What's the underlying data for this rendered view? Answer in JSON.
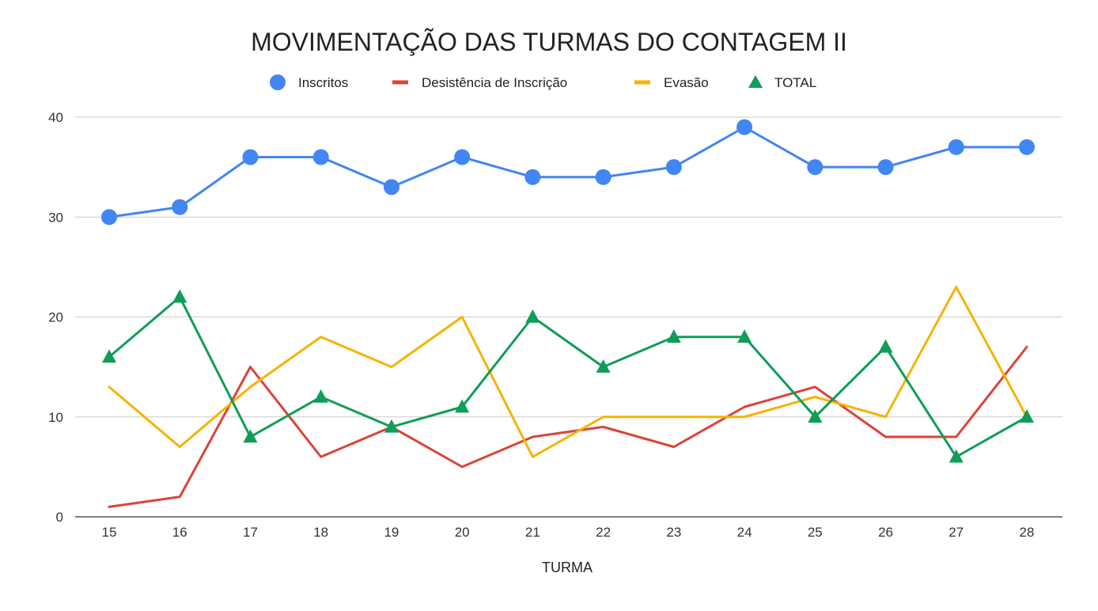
{
  "chart_data": {
    "type": "line",
    "title": "MOVIMENTAÇÃO DAS TURMAS DO CONTAGEM II",
    "xlabel": "TURMA",
    "ylabel": "",
    "ylim": [
      0,
      40
    ],
    "yticks": [
      "0",
      "10",
      "20",
      "30",
      "40"
    ],
    "grid": true,
    "legend_position": "top-center",
    "categories": [
      "15",
      "16",
      "17",
      "18",
      "19",
      "20",
      "21",
      "22",
      "23",
      "24",
      "25",
      "26",
      "27",
      "28"
    ],
    "series": [
      {
        "name": "Inscritos",
        "color": "#4285f4",
        "marker": "circle",
        "values": [
          30,
          31,
          36,
          36,
          33,
          36,
          34,
          34,
          35,
          39,
          35,
          35,
          37,
          37
        ]
      },
      {
        "name": "Desistência de Inscrição",
        "color": "#db4437",
        "marker": "none",
        "values": [
          1,
          2,
          15,
          6,
          9,
          5,
          8,
          9,
          7,
          11,
          13,
          8,
          8,
          17
        ]
      },
      {
        "name": "Evasão",
        "color": "#f4b400",
        "marker": "none",
        "values": [
          13,
          7,
          13,
          18,
          15,
          20,
          6,
          10,
          10,
          10,
          12,
          10,
          23,
          10
        ]
      },
      {
        "name": "TOTAL",
        "color": "#0f9d58",
        "marker": "triangle",
        "values": [
          16,
          22,
          8,
          12,
          9,
          11,
          20,
          15,
          18,
          18,
          10,
          17,
          6,
          10
        ]
      }
    ]
  }
}
